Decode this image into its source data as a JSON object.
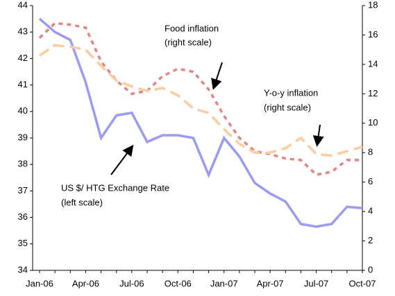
{
  "chart_data": {
    "type": "line",
    "categories": [
      "Jan-06",
      null,
      null,
      "Apr-06",
      null,
      null,
      "Jul-06",
      null,
      null,
      "Oct-06",
      null,
      null,
      "Jan-07",
      null,
      null,
      "Apr-07",
      null,
      null,
      "Jul-07",
      null,
      null,
      "Oct-07"
    ],
    "series": [
      {
        "color": "#9999ff",
        "axis": "y",
        "values": [
          43.5,
          43.0,
          42.7,
          41.1,
          39.0,
          39.85,
          39.95,
          38.85,
          39.1,
          39.1,
          39.0,
          37.6,
          39.0,
          38.3,
          37.3,
          36.9,
          36.6,
          35.75,
          35.65,
          35.75,
          36.4,
          36.35
        ]
      },
      {
        "color": "#f08080",
        "axis": "y2",
        "values": [
          15.8,
          16.8,
          16.7,
          16.5,
          14.2,
          12.9,
          12.0,
          12.2,
          13.2,
          13.7,
          13.5,
          12.3,
          10.5,
          9.0,
          8.1,
          7.9,
          7.6,
          7.5,
          6.5,
          6.7,
          7.5,
          7.5
        ]
      },
      {
        "color": "#ffcc99",
        "axis": "y2",
        "values": [
          14.6,
          15.3,
          15.2,
          15.0,
          13.9,
          12.9,
          12.5,
          12.2,
          12.4,
          11.9,
          11.0,
          10.7,
          9.6,
          8.6,
          8.0,
          8.0,
          8.3,
          9.0,
          7.9,
          7.8,
          8.1,
          8.4
        ]
      }
    ],
    "ylim": [
      34,
      44
    ],
    "yticks": [
      34,
      35,
      36,
      37,
      38,
      39,
      40,
      41,
      42,
      43,
      44
    ],
    "y2lim": [
      0,
      18
    ],
    "y2ticks": [
      0,
      2,
      4,
      6,
      8,
      10,
      12,
      14,
      16,
      18
    ],
    "annotations": [
      {
        "lines": [
          "Food inflation",
          "(right scale)"
        ]
      },
      {
        "lines": [
          "Y-o-y inflation",
          "(right scale)"
        ]
      },
      {
        "lines": [
          "US $/ HTG Exchange Rate",
          "(left scale)"
        ]
      }
    ]
  }
}
